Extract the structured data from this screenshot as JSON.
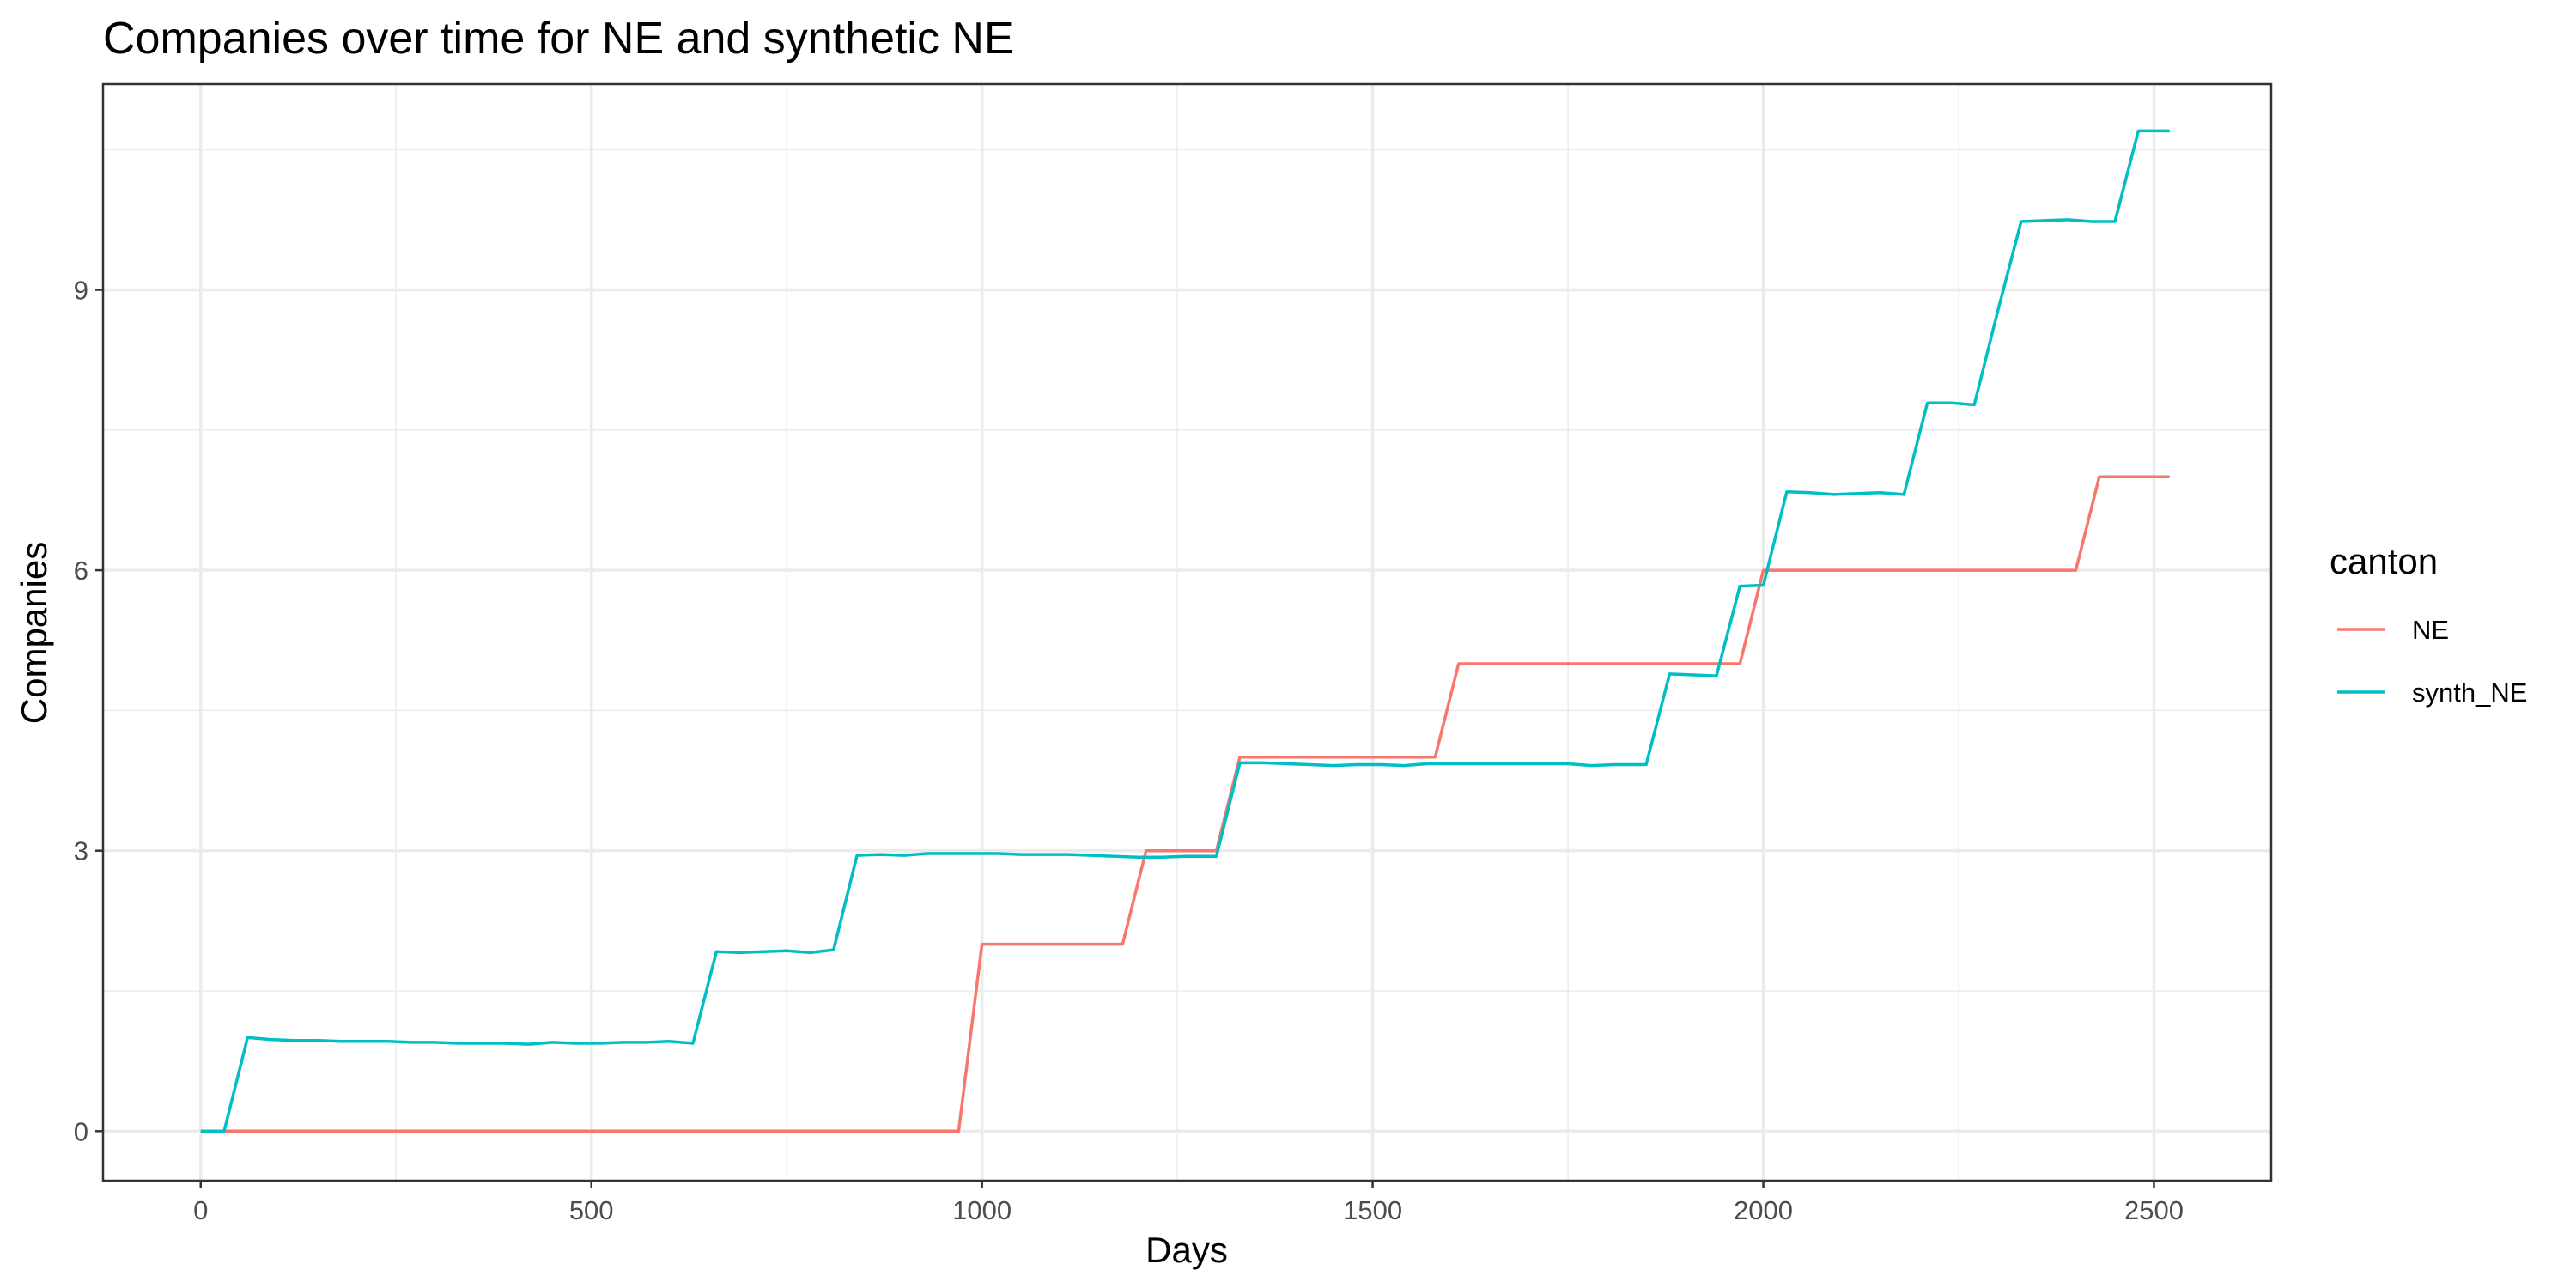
{
  "chart_data": {
    "type": "line",
    "title": "Companies over time for NE and synthetic NE",
    "xlabel": "Days",
    "ylabel": "Companies",
    "xlim": [
      -125,
      2650
    ],
    "ylim": [
      -0.53,
      11.2
    ],
    "x_ticks": [
      0,
      500,
      1000,
      1500,
      2000,
      2500
    ],
    "x_tick_labels": [
      "0",
      "500",
      "1000",
      "1500",
      "2000",
      "2500"
    ],
    "x_minor_ticks": [
      250,
      750,
      1250,
      1750,
      2250
    ],
    "y_ticks": [
      0,
      3,
      6,
      9
    ],
    "y_tick_labels": [
      "0",
      "3",
      "6",
      "9"
    ],
    "y_minor_ticks": [
      1.5,
      4.5,
      7.5,
      10.5
    ],
    "grid": true,
    "legend": {
      "title": "canton",
      "position": "right",
      "entries": [
        "NE",
        "synth_NE"
      ]
    },
    "series": [
      {
        "name": "NE",
        "color": "#F8766D",
        "x": [
          0,
          970,
          1000,
          1180,
          1210,
          1300,
          1330,
          1580,
          1610,
          1970,
          2000,
          2400,
          2430,
          2520
        ],
        "y": [
          0,
          0,
          2,
          2,
          3,
          3,
          4,
          4,
          5,
          5,
          6,
          6,
          7,
          7
        ]
      },
      {
        "name": "synth_NE",
        "color": "#00BFC4",
        "x": [
          0,
          30,
          60,
          90,
          120,
          150,
          180,
          210,
          240,
          270,
          300,
          330,
          360,
          390,
          420,
          450,
          480,
          510,
          540,
          570,
          600,
          630,
          660,
          690,
          720,
          750,
          780,
          810,
          840,
          870,
          900,
          930,
          960,
          990,
          1020,
          1050,
          1080,
          1110,
          1140,
          1170,
          1200,
          1230,
          1260,
          1290,
          1300,
          1330,
          1360,
          1390,
          1420,
          1450,
          1480,
          1510,
          1540,
          1570,
          1600,
          1630,
          1660,
          1690,
          1720,
          1750,
          1780,
          1810,
          1840,
          1850,
          1880,
          1910,
          1940,
          1970,
          2000,
          2030,
          2060,
          2090,
          2120,
          2150,
          2180,
          2210,
          2240,
          2270,
          2300,
          2330,
          2360,
          2390,
          2420,
          2450,
          2480,
          2520
        ],
        "y": [
          0,
          0,
          1.0,
          0.98,
          0.97,
          0.97,
          0.96,
          0.96,
          0.96,
          0.95,
          0.95,
          0.94,
          0.94,
          0.94,
          0.93,
          0.95,
          0.94,
          0.94,
          0.95,
          0.95,
          0.96,
          0.94,
          1.92,
          1.91,
          1.92,
          1.93,
          1.91,
          1.94,
          2.95,
          2.96,
          2.95,
          2.97,
          2.97,
          2.97,
          2.97,
          2.96,
          2.96,
          2.96,
          2.95,
          2.94,
          2.93,
          2.93,
          2.94,
          2.94,
          2.94,
          3.94,
          3.94,
          3.93,
          3.92,
          3.91,
          3.92,
          3.92,
          3.91,
          3.93,
          3.93,
          3.93,
          3.93,
          3.93,
          3.93,
          3.93,
          3.91,
          3.92,
          3.92,
          3.92,
          4.89,
          4.88,
          4.87,
          5.83,
          5.84,
          6.84,
          6.83,
          6.81,
          6.82,
          6.83,
          6.81,
          7.79,
          7.79,
          7.77,
          8.77,
          9.73,
          9.74,
          9.75,
          9.73,
          9.73,
          10.7,
          10.7
        ]
      }
    ]
  }
}
